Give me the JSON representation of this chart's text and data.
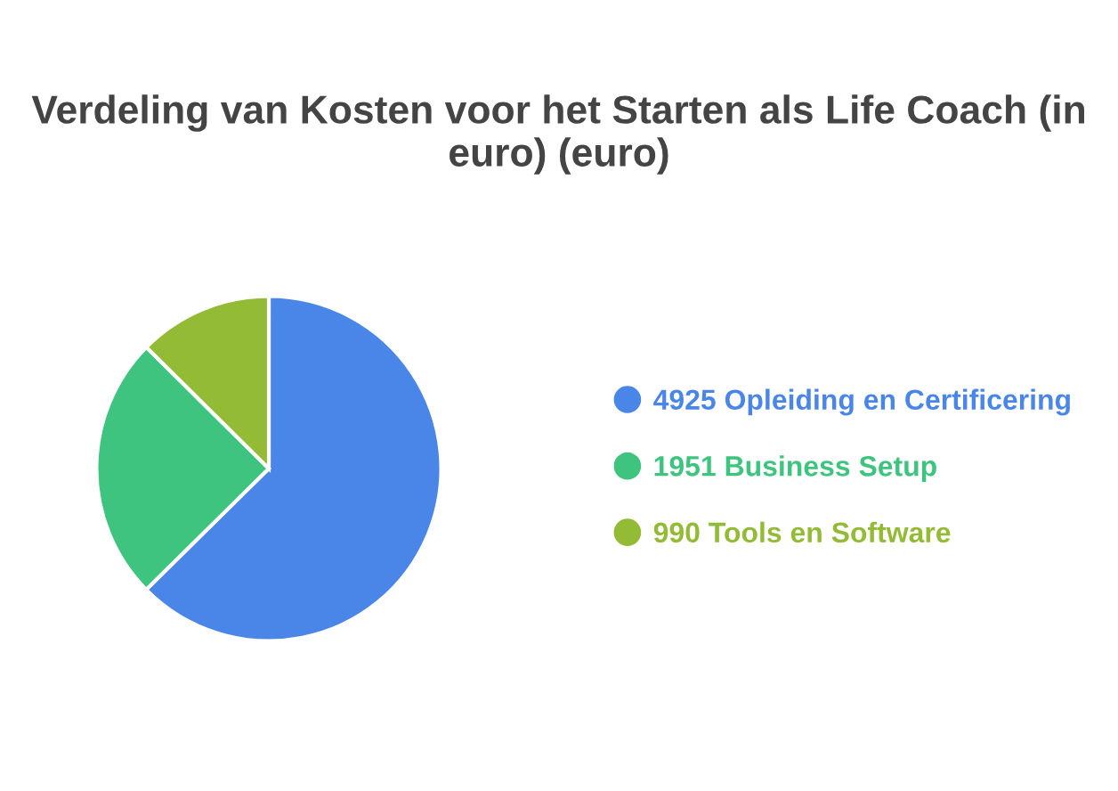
{
  "chart_data": {
    "type": "pie",
    "title": "Verdeling van Kosten voor het Starten als Life Coach (in euro) (euro)",
    "categories": [
      "4925 Opleiding en Certificering",
      "1951 Business Setup",
      "990 Tools en Software"
    ],
    "values": [
      4925,
      1951,
      990
    ],
    "colors": [
      "#4a86e8",
      "#3ec47e",
      "#93bb36"
    ],
    "legend": "right"
  }
}
